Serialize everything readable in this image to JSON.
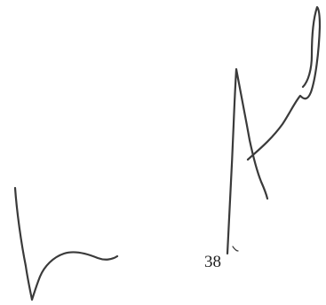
{
  "document": {
    "page_number": "38",
    "ink_color": "#3a3a3a"
  }
}
